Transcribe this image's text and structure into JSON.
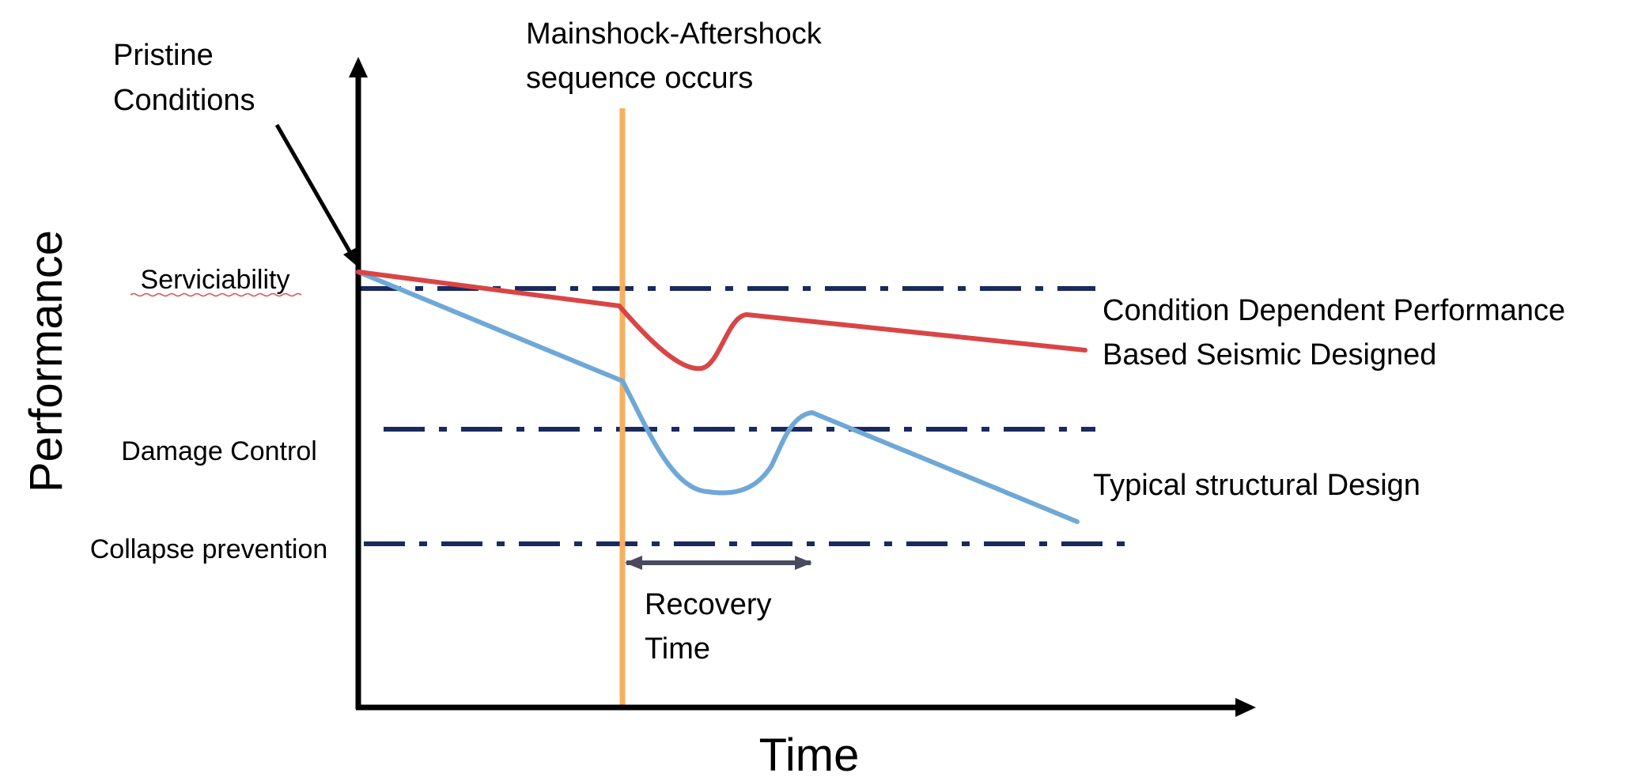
{
  "axes": {
    "y_label": "Performance",
    "x_label": "Time"
  },
  "levels": {
    "serviceability": "Serviciability",
    "damage_control": "Damage Control",
    "collapse_prevention": "Collapse prevention"
  },
  "annotations": {
    "pristine_line1": "Pristine",
    "pristine_line2": "Conditions",
    "event_line1": "Mainshock-Aftershock",
    "event_line2": "sequence occurs",
    "recovery_line1": "Recovery",
    "recovery_line2": "Time"
  },
  "curves": {
    "condition_line1": "Condition Dependent Performance",
    "condition_line2": "Based Seismic Designed",
    "typical": "Typical structural Design"
  },
  "colors": {
    "condition_curve": "#d94545",
    "typical_curve": "#6fa8d6",
    "event_line": "#f5b060",
    "threshold": "#1a2a5e",
    "recovery_arrow": "#4a4a5e",
    "axis": "#000000",
    "spellcheck_underline": "#e05050"
  }
}
